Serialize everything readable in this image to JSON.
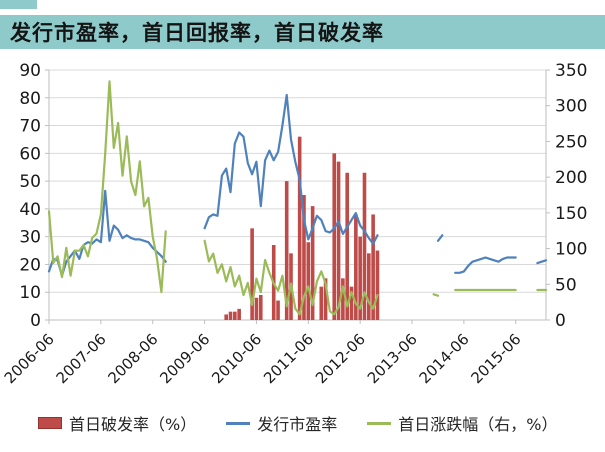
{
  "title_bar": {
    "title": "发行市盈率，首日回报率，首日破发率",
    "background": "#8ecaca"
  },
  "colors": {
    "accent_teal": "#8ecaca",
    "grid": "#d9d9d9",
    "axis_line": "#bfbfbf",
    "text": "#1a1a1a",
    "bar_red": "#be4b48",
    "bar_red_border": "#93322f",
    "line_blue": "#4f81bd",
    "line_green": "#9bbb59"
  },
  "chart_data": {
    "type": "mixed",
    "title": "发行市盈率，首日回报率，首日破发率",
    "x_start": "2006-06",
    "months": 116,
    "x_tick_labels": [
      "2006-06",
      "2007-06",
      "2008-06",
      "2009-06",
      "2010-06",
      "2011-06",
      "2012-06",
      "2013-06",
      "2014-06",
      "2015-06"
    ],
    "x_tick_month_indices": [
      0,
      12,
      24,
      36,
      48,
      60,
      72,
      84,
      96,
      108
    ],
    "left_axis": {
      "min": 0,
      "max": 90,
      "step": 10,
      "ticks": [
        "0",
        "10",
        "20",
        "30",
        "40",
        "50",
        "60",
        "70",
        "80",
        "90"
      ]
    },
    "right_axis": {
      "min": 0,
      "max": 350,
      "step": 50,
      "ticks": [
        "0",
        "50",
        "100",
        "150",
        "200",
        "250",
        "300",
        "350"
      ]
    },
    "grid": true,
    "legend_position": "bottom",
    "series": [
      {
        "name": "首日破发率（%）",
        "type": "bar",
        "axis": "left",
        "color": "#be4b48",
        "points": {
          "41": 2,
          "42": 3,
          "43": 3,
          "44": 4,
          "47": 33,
          "48": 8,
          "49": 9,
          "52": 27,
          "53": 7,
          "55": 50,
          "56": 24,
          "58": 66,
          "59": 45,
          "60": 28,
          "61": 41,
          "63": 12,
          "64": 15,
          "66": 60,
          "67": 57,
          "68": 15,
          "69": 53,
          "70": 12,
          "71": 38,
          "72": 30,
          "73": 53,
          "74": 24,
          "75": 38,
          "76": 25
        }
      },
      {
        "name": "发行市盈率",
        "type": "line",
        "axis": "left",
        "color": "#4f81bd",
        "values": [
          17.5,
          22,
          21.5,
          16,
          21,
          23,
          25,
          22,
          27,
          28,
          27.5,
          29,
          28,
          46.5,
          28.5,
          34,
          32.5,
          29.5,
          30.5,
          29.5,
          29,
          29,
          28.5,
          28,
          26,
          24.5,
          23,
          21,
          null,
          null,
          null,
          null,
          null,
          null,
          null,
          null,
          33,
          37,
          38,
          37.5,
          52,
          54.5,
          46,
          63.5,
          67.5,
          66,
          56.5,
          52.5,
          57,
          41,
          57.5,
          61,
          57.5,
          60.5,
          70,
          81,
          65,
          57,
          50.5,
          36,
          29,
          33,
          37.5,
          36,
          32,
          31.5,
          33,
          35.5,
          31,
          33.5,
          36,
          38.5,
          34,
          32,
          29.5,
          27.5,
          30.5,
          null,
          null,
          null,
          null,
          null,
          null,
          null,
          null,
          null,
          null,
          null,
          null,
          null,
          28.5,
          30.5,
          null,
          null,
          17,
          17,
          17.5,
          19.5,
          21,
          21.5,
          22,
          22.5,
          22,
          21.5,
          21,
          22,
          22.5,
          22.5,
          22.5,
          null,
          null,
          null,
          null,
          20.5,
          21,
          21.5
        ]
      },
      {
        "name": "首日涨跌幅（右，%）",
        "type": "line",
        "axis": "right",
        "color": "#9bbb59",
        "values": [
          152,
          80,
          89,
          60,
          101,
          62,
          97,
          97,
          105,
          89,
          115,
          121,
          148,
          233,
          334,
          241,
          276,
          202,
          257,
          194,
          175,
          222,
          159,
          171,
          117,
          86,
          39,
          124,
          null,
          null,
          null,
          null,
          null,
          null,
          null,
          null,
          111,
          82,
          93,
          66,
          78,
          54,
          74,
          47,
          62,
          35,
          52,
          21,
          58,
          39,
          84,
          66,
          51,
          41,
          62,
          19,
          51,
          16,
          8,
          33,
          47,
          21,
          54,
          68,
          51,
          12,
          8,
          18,
          47,
          19,
          39,
          23,
          16,
          39,
          25,
          16,
          35,
          null,
          null,
          null,
          null,
          null,
          null,
          null,
          null,
          null,
          null,
          null,
          null,
          36,
          34,
          null,
          null,
          null,
          42,
          42,
          42,
          42,
          42,
          42,
          42,
          42,
          42,
          42,
          42,
          42,
          42,
          42,
          42,
          null,
          null,
          null,
          null,
          42,
          42,
          42
        ]
      }
    ]
  }
}
